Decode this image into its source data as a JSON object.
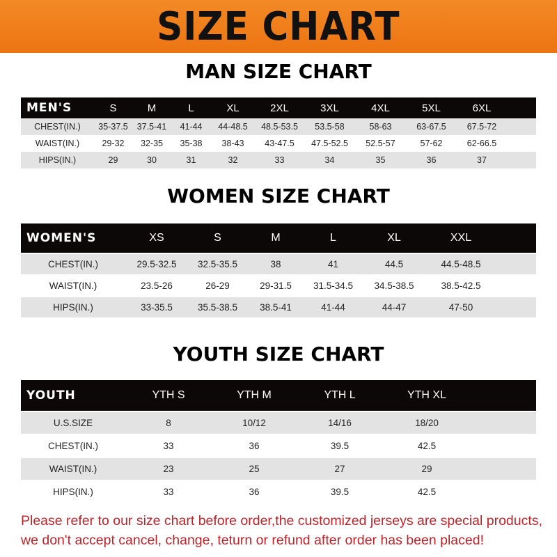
{
  "banner": {
    "title": "SIZE CHART",
    "color": "#ef7d1a"
  },
  "men": {
    "title": "MAN SIZE CHART",
    "header_label": "MEN'S",
    "sizes": [
      "S",
      "M",
      "L",
      "XL",
      "2XL",
      "3XL",
      "4XL",
      "5XL",
      "6XL"
    ],
    "rows": [
      {
        "label": "CHEST(IN.)",
        "values": [
          "35-37.5",
          "37.5-41",
          "41-44",
          "44-48.5",
          "48.5-53.5",
          "53.5-58",
          "58-63",
          "63-67.5",
          "67.5-72"
        ]
      },
      {
        "label": "WAIST(IN.)",
        "values": [
          "29-32",
          "32-35",
          "35-38",
          "38-43",
          "43-47.5",
          "47.5-52.5",
          "52.5-57",
          "57-62",
          "62-66.5"
        ]
      },
      {
        "label": "HIPS(IN.)",
        "values": [
          "29",
          "30",
          "31",
          "32",
          "33",
          "34",
          "35",
          "36",
          "37"
        ]
      }
    ]
  },
  "women": {
    "title": "WOMEN SIZE CHART",
    "header_label": "WOMEN'S",
    "sizes": [
      "XS",
      "S",
      "M",
      "L",
      "XL",
      "XXL"
    ],
    "rows": [
      {
        "label": "CHEST(IN.)",
        "values": [
          "29.5-32.5",
          "32.5-35.5",
          "38",
          "41",
          "44.5",
          "44.5-48.5"
        ]
      },
      {
        "label": "WAIST(IN.)",
        "values": [
          "23.5-26",
          "26-29",
          "29-31.5",
          "31.5-34.5",
          "34.5-38.5",
          "38.5-42.5"
        ]
      },
      {
        "label": "HIPS(IN.)",
        "values": [
          "33-35.5",
          "35.5-38.5",
          "38.5-41",
          "41-44",
          "44-47",
          "47-50"
        ]
      }
    ]
  },
  "youth": {
    "title": "YOUTH SIZE CHART",
    "header_label": "YOUTH",
    "sizes": [
      "YTH S",
      "YTH M",
      "YTH L",
      "YTH XL"
    ],
    "rows": [
      {
        "label": "U.S.SIZE",
        "values": [
          "8",
          "10/12",
          "14/16",
          "18/20"
        ]
      },
      {
        "label": "CHEST(IN.)",
        "values": [
          "33",
          "36",
          "39.5",
          "42.5"
        ]
      },
      {
        "label": "WAIST(IN.)",
        "values": [
          "23",
          "25",
          "27",
          "29"
        ]
      },
      {
        "label": "HIPS(IN.)",
        "values": [
          "33",
          "36",
          "39.5",
          "42.5"
        ]
      }
    ]
  },
  "note": {
    "line1": "Please refer to our size chart before order,the customized jerseys are special products,",
    "line2": "we don't accept cancel, change, teturn or refund after order has been placed!",
    "color": "#b8262c"
  }
}
